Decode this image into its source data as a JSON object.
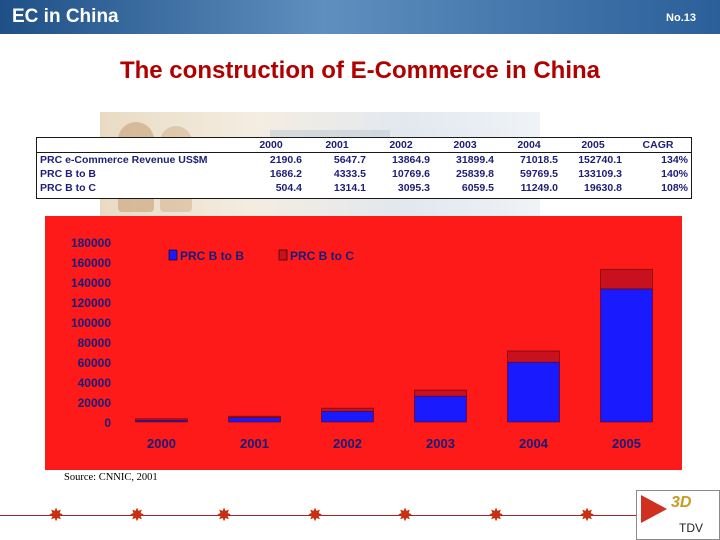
{
  "header": {
    "title": "EC in China",
    "slide_no": "No.13"
  },
  "slide_title": "The construction of E-Commerce in China",
  "table": {
    "columns": [
      "",
      "2000",
      "2001",
      "2002",
      "2003",
      "2004",
      "2005",
      "CAGR"
    ],
    "rows": [
      [
        "PRC e-Commerce Revenue US$M",
        "2190.6",
        "5647.7",
        "13864.9",
        "31899.4",
        "71018.5",
        "152740.1",
        "134%"
      ],
      [
        "PRC B to B",
        "1686.2",
        "4333.5",
        "10769.6",
        "25839.8",
        "59769.5",
        "133109.3",
        "140%"
      ],
      [
        "PRC B to C",
        "504.4",
        "1314.1",
        "3095.3",
        "6059.5",
        "11249.0",
        "19630.8",
        "108%"
      ]
    ]
  },
  "chart_data": {
    "type": "bar",
    "stacked": true,
    "categories": [
      "2000",
      "2001",
      "2002",
      "2003",
      "2004",
      "2005"
    ],
    "series": [
      {
        "name": "PRC B to B",
        "values": [
          1686.2,
          4333.5,
          10769.6,
          25839.8,
          59769.5,
          133109.3
        ],
        "color": "#1a1aff"
      },
      {
        "name": "PRC B to C",
        "values": [
          504.4,
          1314.1,
          3095.3,
          6059.5,
          11249.0,
          19630.8
        ],
        "color": "#c8101e"
      }
    ],
    "y_ticks": [
      "180000",
      "160000",
      "140000",
      "120000",
      "100000",
      "80000",
      "60000",
      "40000",
      "20000",
      "0"
    ],
    "ylim": [
      0,
      180000
    ],
    "legend_position": "top",
    "background": "#ff1a1a",
    "grid": false
  },
  "source": "Source: CNNIC, 2001",
  "logo": {
    "mark": "3D",
    "name": "TDV"
  }
}
